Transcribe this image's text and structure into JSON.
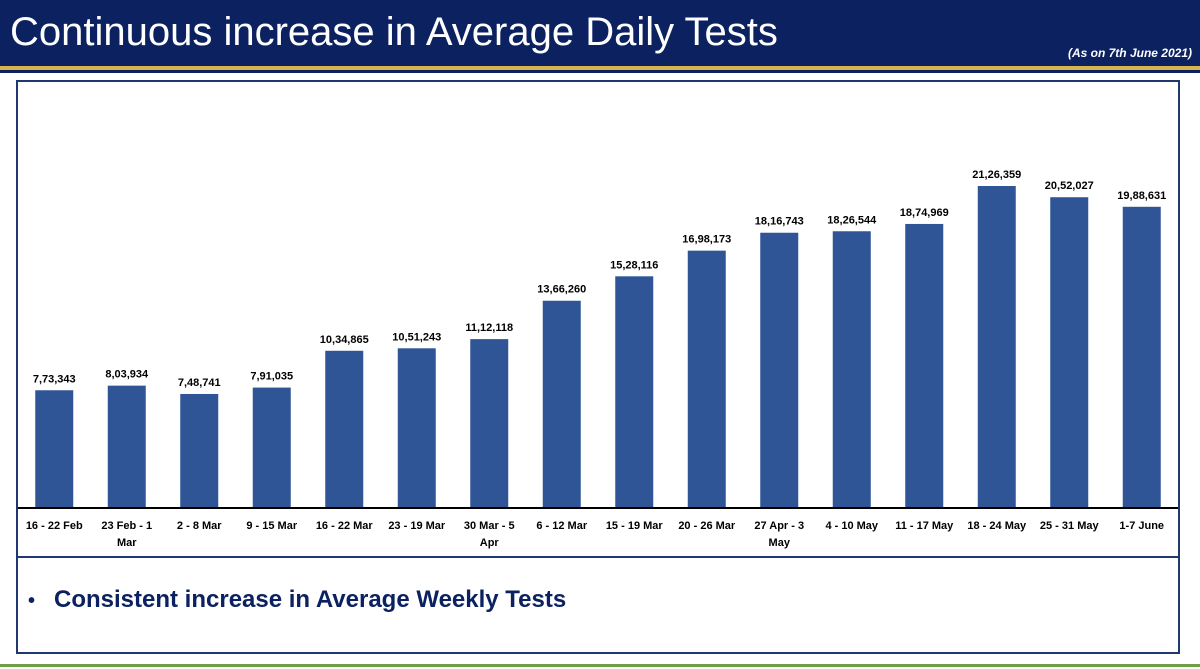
{
  "header": {
    "title": "Continuous increase in Average Daily Tests",
    "subtitle": "(As on 7th June 2021)"
  },
  "colors": {
    "header_bg": "#0b2160",
    "accent_gold": "#d8b24a",
    "bar": "#2f5597",
    "footer_green": "#6fa046"
  },
  "chart_data": {
    "type": "bar",
    "title": "Continuous increase in Average Daily Tests",
    "xlabel": "",
    "ylabel": "",
    "grid": false,
    "legend": "none",
    "ylim": [
      0,
      2200000
    ],
    "categories": [
      "16 - 22 Feb",
      "23 Feb - 1 Mar",
      "2 - 8 Mar",
      "9 - 15 Mar",
      "16 - 22 Mar",
      "23 - 19 Mar",
      "30 Mar - 5 Apr",
      "6 - 12 Mar",
      "15 - 19 Mar",
      "20 - 26 Mar",
      "27 Apr - 3 May",
      "4 - 10 May",
      "11 - 17 May",
      "18 - 24 May",
      "25 - 31 May",
      "1-7 June"
    ],
    "category_lines": [
      [
        "16 - 22 Feb"
      ],
      [
        "23 Feb - 1",
        "Mar"
      ],
      [
        "2 - 8 Mar"
      ],
      [
        "9 - 15 Mar"
      ],
      [
        "16 - 22 Mar"
      ],
      [
        "23 - 19 Mar"
      ],
      [
        "30 Mar - 5",
        "Apr"
      ],
      [
        "6 - 12 Mar"
      ],
      [
        "15 - 19 Mar"
      ],
      [
        "20 - 26 Mar"
      ],
      [
        "27 Apr - 3",
        "May"
      ],
      [
        "4 - 10 May"
      ],
      [
        "11 - 17 May"
      ],
      [
        "18 - 24 May"
      ],
      [
        "25 - 31 May"
      ],
      [
        "1-7 June"
      ]
    ],
    "values": [
      773343,
      803934,
      748741,
      791035,
      1034865,
      1051243,
      1112118,
      1366260,
      1528116,
      1698173,
      1816743,
      1826544,
      1874969,
      2126359,
      2052027,
      1988631
    ],
    "data_labels": [
      "7,73,343",
      "8,03,934",
      "7,48,741",
      "7,91,035",
      "10,34,865",
      "10,51,243",
      "11,12,118",
      "13,66,260",
      "15,28,116",
      "16,98,173",
      "18,16,743",
      "18,26,544",
      "18,74,969",
      "21,26,359",
      "20,52,027",
      "19,88,631"
    ]
  },
  "notes": {
    "bullet": "Consistent increase in Average Weekly Tests"
  }
}
